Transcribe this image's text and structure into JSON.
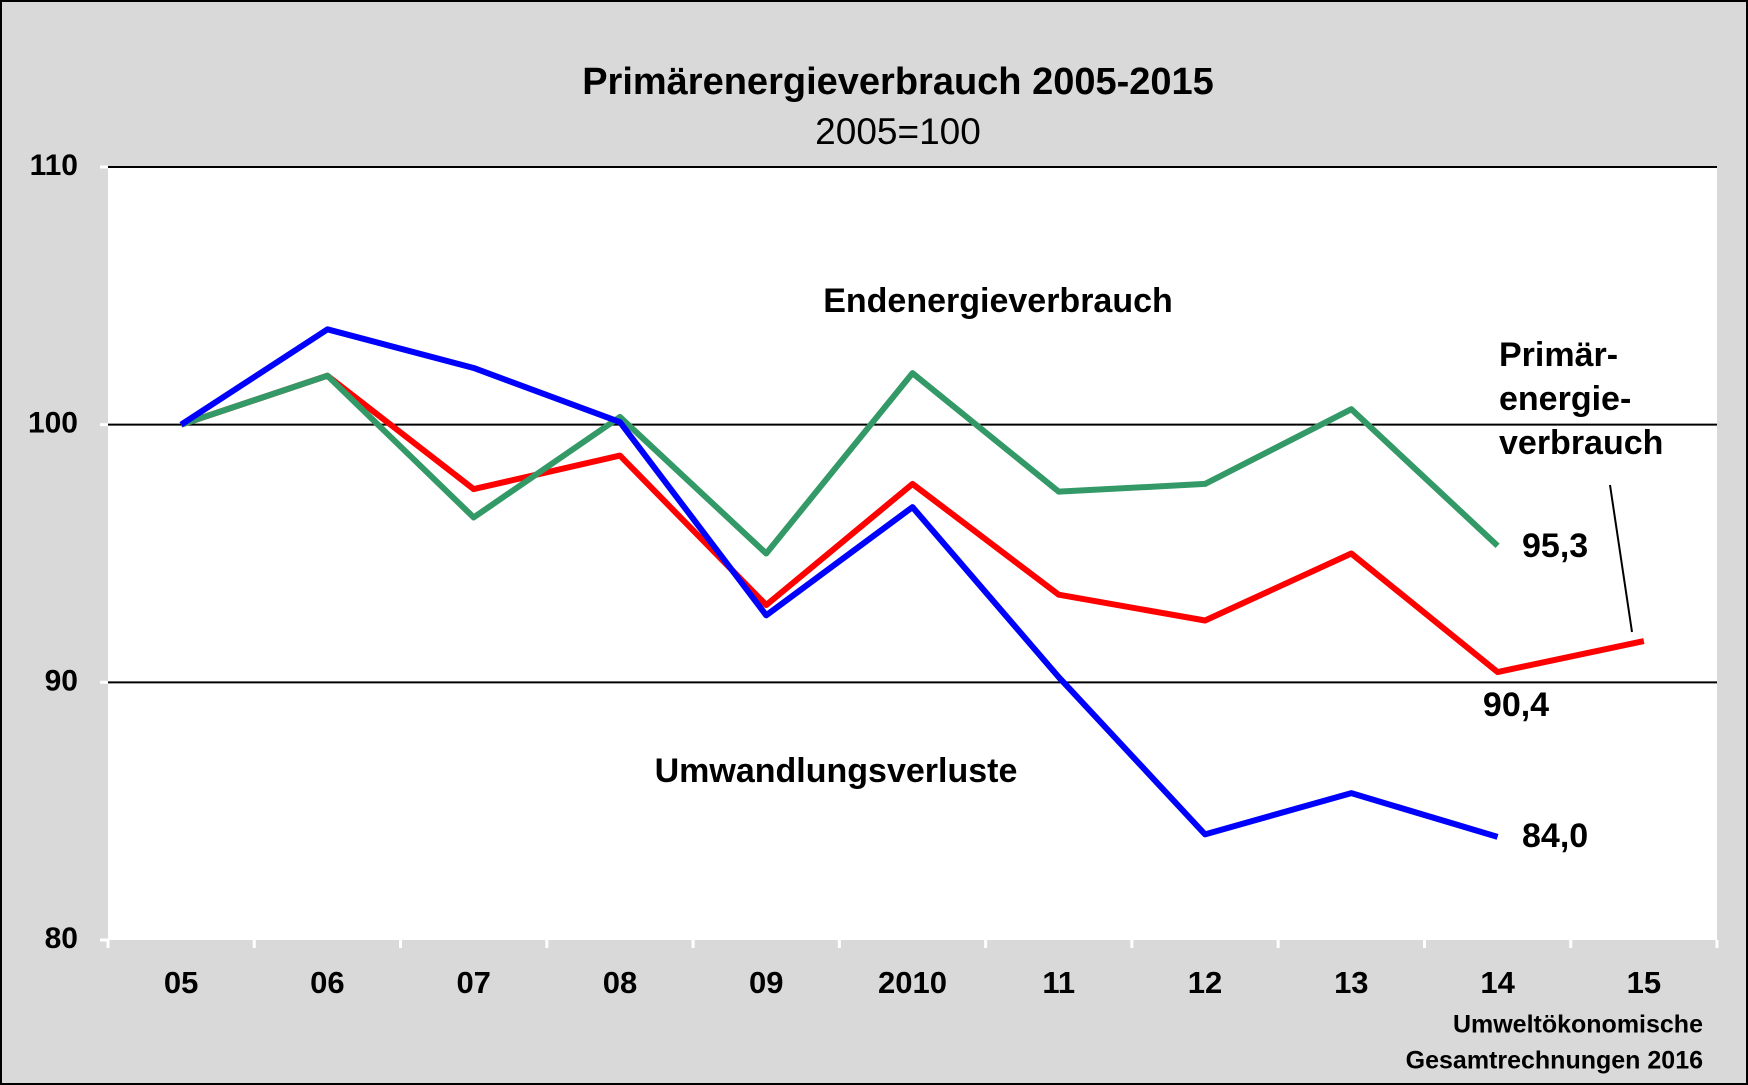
{
  "chart_data": {
    "type": "line",
    "title": "Primärenergieverbrauch 2005-2015",
    "subtitle": "2005=100",
    "categories": [
      "05",
      "06",
      "07",
      "08",
      "09",
      "2010",
      "11",
      "12",
      "13",
      "14",
      "15"
    ],
    "series": [
      {
        "name": [
          "Primär-",
          "energie-",
          "verbrauch"
        ],
        "color": "#ff0000",
        "values": [
          100,
          101.9,
          97.5,
          98.8,
          93.0,
          97.7,
          93.4,
          92.4,
          95.0,
          90.4,
          91.6
        ],
        "value_labels": [
          null,
          null,
          null,
          null,
          null,
          null,
          null,
          null,
          null,
          "90,4",
          null
        ]
      },
      {
        "name": "Endenergieverbrauch",
        "color": "#339966",
        "values": [
          100,
          101.9,
          96.4,
          100.3,
          95.0,
          102.0,
          97.4,
          97.7,
          100.6,
          95.3,
          null
        ],
        "value_labels": [
          null,
          null,
          null,
          null,
          null,
          null,
          null,
          null,
          null,
          "95,3",
          null
        ]
      },
      {
        "name": "Umwandlungsverluste",
        "color": "#0000ff",
        "values": [
          100,
          103.7,
          102.2,
          100.1,
          92.6,
          96.8,
          90.2,
          84.1,
          85.7,
          84.0,
          null
        ],
        "value_labels": [
          null,
          null,
          null,
          null,
          null,
          null,
          null,
          null,
          null,
          "84,0",
          null
        ]
      }
    ],
    "ylim": [
      80,
      110
    ],
    "yticks": [
      80,
      90,
      100,
      110
    ],
    "grid": true,
    "source": [
      "Umweltökonomische",
      "Gesamtrechnungen 2016"
    ]
  }
}
